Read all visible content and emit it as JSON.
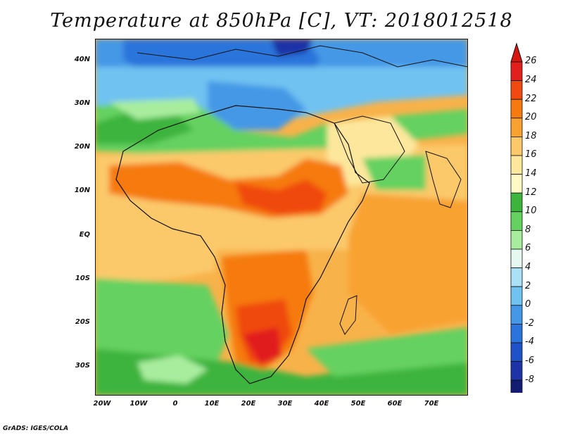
{
  "title": "Temperature at 850hPa [C], VT: 2018012518",
  "footer": "GrADS: IGES/COLA",
  "map": {
    "lat_labels": [
      "40N",
      "30N",
      "20N",
      "10N",
      "EQ",
      "10S",
      "20S",
      "30S"
    ],
    "lon_labels": [
      "20W",
      "10W",
      "0",
      "10E",
      "20E",
      "30E",
      "40E",
      "50E",
      "60E",
      "70E"
    ]
  },
  "colorbar": {
    "labels": [
      "26",
      "24",
      "22",
      "20",
      "18",
      "16",
      "14",
      "12",
      "10",
      "8",
      "6",
      "4",
      "2",
      "0",
      "-2",
      "-4",
      "-6",
      "-8"
    ],
    "colors": [
      "#e11f1c",
      "#f04a10",
      "#f67a0f",
      "#f8a232",
      "#fbc96a",
      "#fde79c",
      "#fdfac6",
      "#3db43c",
      "#65d160",
      "#a8ed9e",
      "#e6f9f0",
      "#a9e2f6",
      "#70c2f1",
      "#4598e6",
      "#2a74db",
      "#1f52c8",
      "#1d33a6",
      "#111c72"
    ],
    "top_color": "#d8160f",
    "bottom_color": "#e2daf5"
  }
}
